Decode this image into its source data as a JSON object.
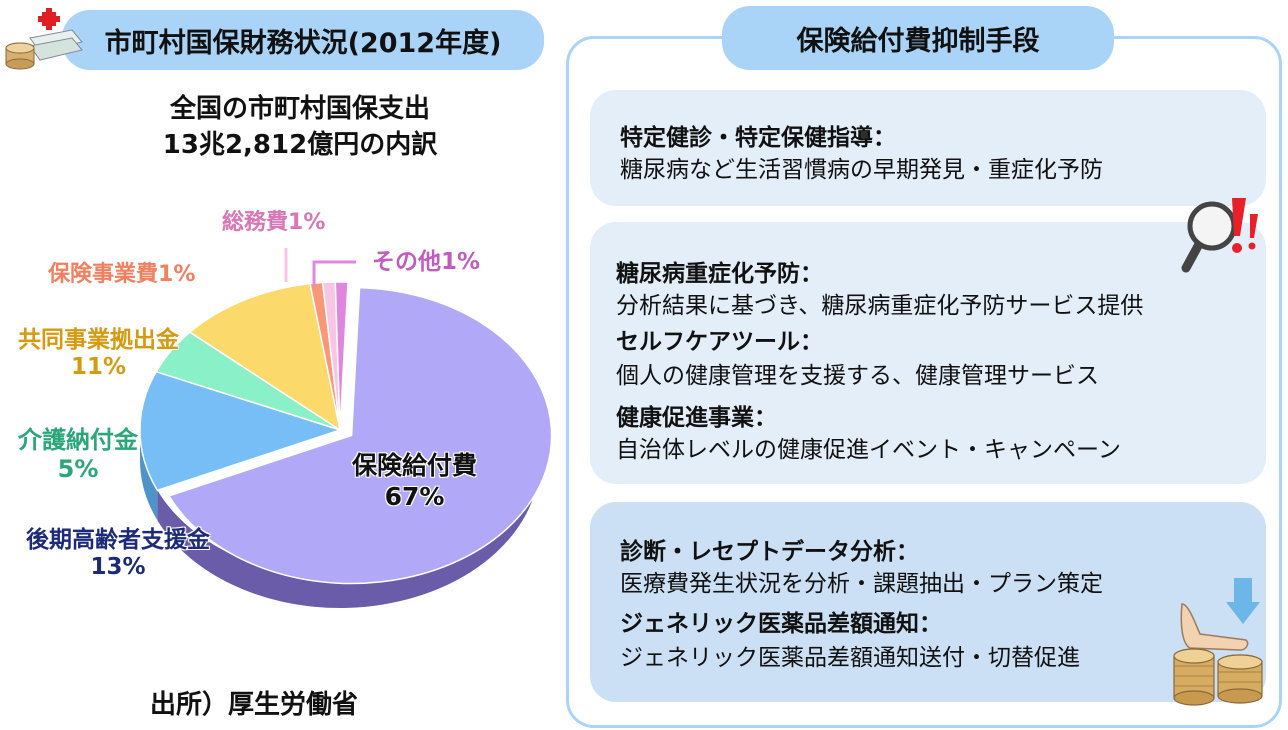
{
  "left": {
    "title": "市町村国保財務状況(2012年度)",
    "subtitle_line1": "全国の市町村国保支出",
    "subtitle_line2": "13兆2,812億円の内訳",
    "source": "出所）厚生労働省"
  },
  "chart_data": {
    "type": "pie",
    "title": "",
    "slices": [
      {
        "label": "保険給付費",
        "value": 67,
        "value_label": "67%",
        "color": "#b2a8f8",
        "side_color": "#6a5ca8"
      },
      {
        "label": "後期高齢者支援金",
        "value": 13,
        "value_label": "13%",
        "color": "#77bdf6",
        "side_color": "#4f94c8"
      },
      {
        "label": "介護納付金",
        "value": 5,
        "value_label": "5%",
        "color": "#8af0c8",
        "side_color": "#5ec29a"
      },
      {
        "label": "共同事業拠出金",
        "value": 11,
        "value_label": "11%",
        "color": "#fbd96a",
        "side_color": "#d6ac3c"
      },
      {
        "label": "保険事業費",
        "value": 1,
        "value_label": "1%",
        "color": "#f99779",
        "side_color": "#d06c50"
      },
      {
        "label": "総務費",
        "value": 1,
        "value_label": "1%",
        "color": "#f8c6e4",
        "side_color": "#d89ec2"
      },
      {
        "label": "その他",
        "value": 1,
        "value_label": "1%",
        "color": "#e086de",
        "side_color": "#b25cb0"
      }
    ],
    "label_colors": {
      "保険給付費": "#111111",
      "後期高齢者支援金": "#1c2a7a",
      "介護納付金": "#2aa67a",
      "共同事業拠出金": "#d69a10",
      "保険事業費": "#f08060",
      "総務費": "#d877b5",
      "その他": "#c05cc0"
    }
  },
  "right": {
    "title": "保険給付費抑制手段",
    "box1": {
      "h1": "特定健診・特定保健指導：",
      "t1": "糖尿病など生活習慣病の早期発見・重症化予防"
    },
    "box2": {
      "h1": "糖尿病重症化予防：",
      "t1": "分析結果に基づき、糖尿病重症化予防サービス提供",
      "h2": "セルフケアツール：",
      "t2": "個人の健康管理を支援する、健康管理サービス",
      "h3": "健康促進事業：",
      "t3": "自治体レベルの健康促進イベント・キャンペーン"
    },
    "box3": {
      "h1": "診断・レセプトデータ分析：",
      "t1": "医療費発生状況を分析・課題抽出・プラン策定",
      "h2": "ジェネリック医薬品差額通知：",
      "t2": "ジェネリック医薬品差額通知送付・切替促進"
    }
  },
  "icons": {
    "left": "money-stack-icon",
    "magnifier": "magnifier-alert-icon",
    "coins": "hand-coins-icon"
  }
}
